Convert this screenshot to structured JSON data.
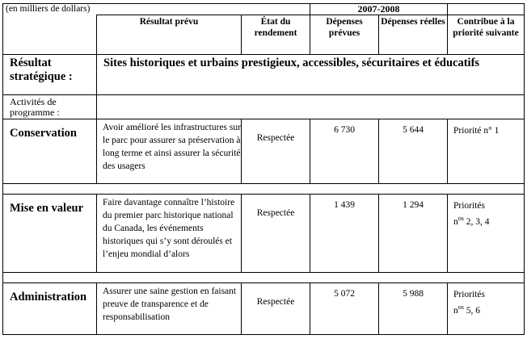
{
  "units_label": "(en milliers de dollars)",
  "period": "2007-2008",
  "headers": {
    "expected_result": "Résultat prévu",
    "performance_status": "État du rendement",
    "planned_spending": "Dépenses prévues",
    "actual_spending": "Dépenses réelles",
    "contributes_to": "Contribue à la priorité suivante"
  },
  "strategic_outcome": {
    "label": "Résultat stratégique :",
    "text": "Sites historiques et urbains prestigieux, accessibles, sécuritaires et éducatifs"
  },
  "activities_label": "Activités de programme :",
  "activities": [
    {
      "name": "Conservation",
      "expected_result": "Avoir amélioré les infrastructures sur le parc pour assurer sa préservation à long terme et ainsi assurer la sécurité des usagers",
      "status": "Respectée",
      "planned": "6 730",
      "actual": "5 644",
      "priority_line1": "Priorité n° 1",
      "priority_line2": ""
    },
    {
      "name": "Mise en valeur",
      "expected_result": "Faire davantage connaître l’histoire du premier parc historique national du Canada, les événements historiques qui s’y sont déroulés et l’enjeu mondial d’alors",
      "status": "Respectée",
      "planned": "1 439",
      "actual": "1 294",
      "priority_line1": "Priorités",
      "priority_prefix": "n",
      "priority_sup": "os",
      "priority_line2": " 2, 3, 4"
    },
    {
      "name": "Administration",
      "expected_result": "Assurer une saine gestion en faisant preuve de transparence et de responsabilisation",
      "status": "Respectée",
      "planned": "5 072",
      "actual": "5 988",
      "priority_line1": "Priorités",
      "priority_prefix": "n",
      "priority_sup": "os",
      "priority_line2": " 5, 6"
    }
  ]
}
